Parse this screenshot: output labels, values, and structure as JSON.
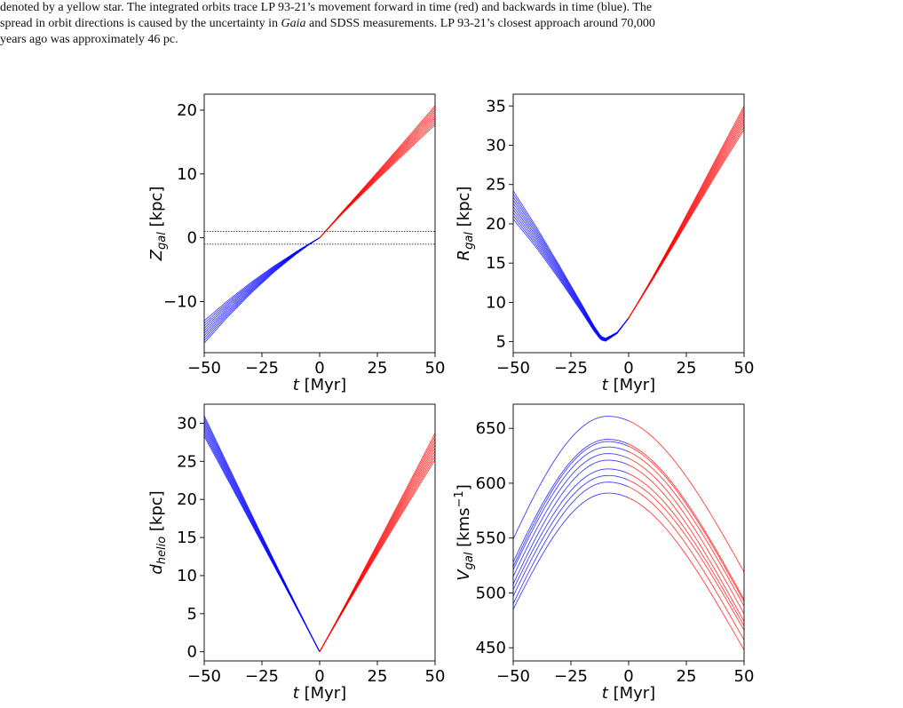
{
  "caption": {
    "line1": "denoted by a yellow star. The integrated orbits trace LP 93-21’s movement forward in time (red) and backwards in time (blue). The",
    "line2_pre": "spread in orbit directions is caused by the uncertainty in ",
    "line2_em": "Gaia",
    "line2_post": " and SDSS measurements. LP 93-21’s closest approach around 70,000",
    "line3": "years ago was approximately 46 pc."
  },
  "colors": {
    "past": "#0000ff",
    "future": "#ff0000",
    "axis": "#000000"
  },
  "chart_data": [
    {
      "type": "line",
      "xlabel_italic": "t",
      "xlabel_unit": "[Myr]",
      "ylabel_main": "Z",
      "ylabel_sub": "gal",
      "ylabel_unit": "[kpc]",
      "ylabel_sup": "",
      "xlim": [
        -50,
        50
      ],
      "ylim": [
        -18,
        22.5
      ],
      "xticks": [
        -50,
        -25,
        0,
        25,
        50
      ],
      "yticks": [
        -10,
        0,
        10,
        20
      ],
      "hlines": [
        1,
        -1
      ],
      "past": {
        "x": [
          -50,
          -40,
          -30,
          -20,
          -10,
          -5,
          0
        ],
        "y_center": [
          -14.5,
          -11.0,
          -7.8,
          -4.9,
          -2.3,
          -1.1,
          0.0
        ],
        "spread_end": [
          -16.5,
          -13.0
        ]
      },
      "future": {
        "x": [
          0,
          10,
          20,
          30,
          40,
          50
        ],
        "y_center": [
          0.0,
          4.0,
          7.8,
          11.6,
          15.4,
          19.2
        ],
        "spread_end": [
          17.7,
          20.7
        ]
      }
    },
    {
      "type": "line",
      "xlabel_italic": "t",
      "xlabel_unit": "[Myr]",
      "ylabel_main": "R",
      "ylabel_sub": "gal",
      "ylabel_unit": "[kpc]",
      "ylabel_sup": "",
      "xlim": [
        -50,
        50
      ],
      "ylim": [
        3.6,
        36.5
      ],
      "xticks": [
        -50,
        -25,
        0,
        25,
        50
      ],
      "yticks": [
        5,
        10,
        15,
        20,
        25,
        30,
        35
      ],
      "hlines": [],
      "past": {
        "x": [
          -50,
          -40,
          -30,
          -20,
          -15,
          -12,
          -10,
          -5,
          0
        ],
        "y_center": [
          22.0,
          18.0,
          13.6,
          9.0,
          6.6,
          5.4,
          5.2,
          6.1,
          8.0
        ],
        "spread_end": [
          20.6,
          24.2
        ]
      },
      "future": {
        "x": [
          0,
          10,
          20,
          30,
          40,
          50
        ],
        "y_center": [
          8.0,
          12.8,
          17.8,
          22.9,
          28.0,
          33.0
        ],
        "spread_end": [
          32.0,
          35.0
        ]
      }
    },
    {
      "type": "line",
      "xlabel_italic": "t",
      "xlabel_unit": "[Myr]",
      "ylabel_main": "d",
      "ylabel_sub": "helio",
      "ylabel_unit": "[kpc]",
      "ylabel_sup": "",
      "xlim": [
        -50,
        50
      ],
      "ylim": [
        -1.2,
        32.5
      ],
      "xticks": [
        -50,
        -25,
        0,
        25,
        50
      ],
      "yticks": [
        0,
        5,
        10,
        15,
        20,
        25,
        30
      ],
      "hlines": [],
      "past": {
        "x": [
          -50,
          -25,
          0
        ],
        "y_center": [
          29.3,
          14.6,
          0.0
        ],
        "spread_end": [
          28.3,
          31.0
        ]
      },
      "future": {
        "x": [
          0,
          25,
          50
        ],
        "y_center": [
          0.0,
          13.5,
          27.0
        ],
        "spread_end": [
          25.2,
          28.7
        ]
      }
    },
    {
      "type": "line",
      "xlabel_italic": "t",
      "xlabel_unit": "[Myr]",
      "ylabel_main": "V",
      "ylabel_sub": "gal",
      "ylabel_unit": "[kms",
      "ylabel_sup": "−1",
      "xlim": [
        -50,
        50
      ],
      "ylim": [
        438,
        672
      ],
      "xticks": [
        -50,
        -25,
        0,
        25,
        50
      ],
      "yticks": [
        450,
        500,
        550,
        600,
        650
      ],
      "hlines": [],
      "peak_t": -9,
      "curves_past_start": [
        549,
        528,
        524,
        521,
        515,
        508,
        503,
        497,
        490,
        485
      ],
      "curves_peak": [
        661,
        640,
        638,
        633,
        627,
        621,
        613,
        607,
        601,
        591
      ],
      "curves_future_end": [
        519,
        494,
        492,
        488,
        481,
        474,
        470,
        466,
        457,
        448
      ]
    }
  ]
}
